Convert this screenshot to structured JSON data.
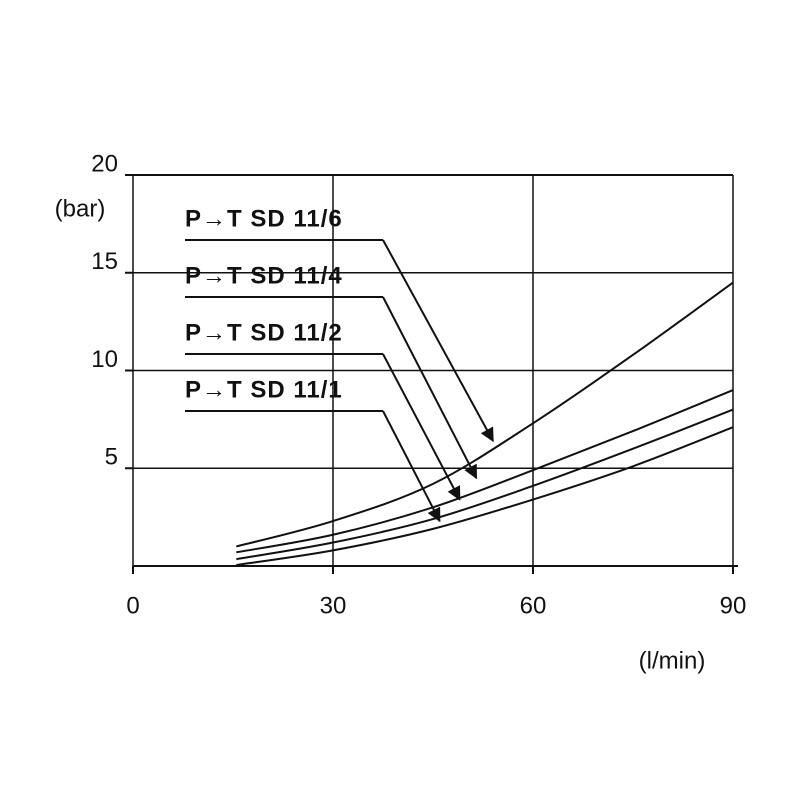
{
  "chart_data": {
    "type": "line",
    "xlabel": "(l/min)",
    "ylabel": "(bar)",
    "xlim": [
      0,
      90
    ],
    "xticks": [
      0,
      30,
      60,
      90
    ],
    "ylim": [
      0,
      20
    ],
    "yticks": [
      5,
      10,
      15,
      20
    ],
    "grid": true,
    "x": [
      15.5,
      30,
      45,
      60,
      75,
      90
    ],
    "series": [
      {
        "color": "#111111",
        "values": [
          1.0,
          2.3,
          4.2,
          7.3,
          10.8,
          14.5
        ]
      },
      {
        "color": "#111111",
        "values": [
          0.7,
          1.6,
          3.0,
          4.9,
          6.9,
          9.0
        ]
      },
      {
        "color": "#111111",
        "values": [
          0.35,
          1.2,
          2.4,
          4.1,
          6.0,
          8.0
        ]
      },
      {
        "color": "#111111",
        "values": [
          0.05,
          0.8,
          1.9,
          3.4,
          5.1,
          7.1
        ]
      }
    ],
    "annotations": [
      {
        "text": "P→T SD 11/6",
        "x": 54,
        "y": 6.4
      },
      {
        "text": "P→T SD 11/4",
        "x": 51.5,
        "y": 4.5
      },
      {
        "text": "P→T SD 11/2",
        "x": 49,
        "y": 3.4
      },
      {
        "text": "P→T SD 11/1",
        "x": 46,
        "y": 2.3
      }
    ]
  }
}
